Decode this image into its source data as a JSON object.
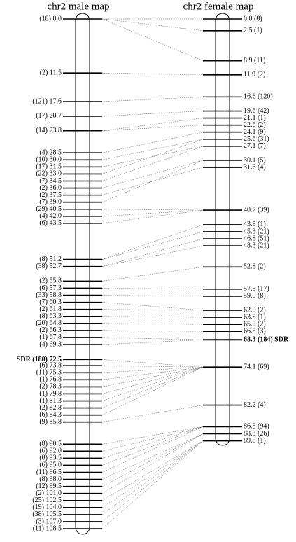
{
  "male": {
    "title": "chr2 male map",
    "markers": [
      {
        "label": "(18) 0.0"
      },
      {
        "label": "(2) 11.5"
      },
      {
        "label": "(121) 17.6"
      },
      {
        "label": "(17) 20.7"
      },
      {
        "label": "(14) 23.8"
      },
      {
        "label": "(4) 28.5"
      },
      {
        "label": "(10) 30.0"
      },
      {
        "label": "(17) 31.5"
      },
      {
        "label": "(22) 33.0"
      },
      {
        "label": "(7) 34.5"
      },
      {
        "label": "(2) 36.0"
      },
      {
        "label": "(2) 37.5"
      },
      {
        "label": "(7) 39.0"
      },
      {
        "label": "(29) 40.5"
      },
      {
        "label": "(4) 42.0"
      },
      {
        "label": "(6) 43.5"
      },
      {
        "label": "(8) 51.2"
      },
      {
        "label": "(38) 52.7"
      },
      {
        "label": "(2) 55.8"
      },
      {
        "label": "(6) 57.3"
      },
      {
        "label": "(33) 58.8"
      },
      {
        "label": "(7) 60.3"
      },
      {
        "label": "(2) 61.8"
      },
      {
        "label": "(8) 63.3"
      },
      {
        "label": "(20) 64.8"
      },
      {
        "label": "(2) 66.3"
      },
      {
        "label": "(1) 67.8"
      },
      {
        "label": "(4) 69.3"
      },
      {
        "label": "SDR (180) 72.5",
        "bold": true
      },
      {
        "label": "(6) 73.8"
      },
      {
        "label": "(11) 75.3"
      },
      {
        "label": "(1) 76.8"
      },
      {
        "label": "(2) 78.3"
      },
      {
        "label": "(1) 79.8"
      },
      {
        "label": "(1) 81.3"
      },
      {
        "label": "(2) 82.8"
      },
      {
        "label": "(6) 84.3"
      },
      {
        "label": "(9) 85.8"
      },
      {
        "label": "(8) 90.5"
      },
      {
        "label": "(6) 92.0"
      },
      {
        "label": "(8) 93.5"
      },
      {
        "label": "(6) 95.0"
      },
      {
        "label": "(11) 96.5"
      },
      {
        "label": "(8) 98.0"
      },
      {
        "label": "(12) 99.5"
      },
      {
        "label": "(2) 101.0"
      },
      {
        "label": "(25) 102.5"
      },
      {
        "label": "(19) 104.0"
      },
      {
        "label": "(38) 105.5"
      },
      {
        "label": "(3) 107.0"
      },
      {
        "label": "(11) 108.5"
      }
    ]
  },
  "female": {
    "title": "chr2 female map",
    "markers": [
      {
        "label": "0.0 (8)"
      },
      {
        "label": "2.5 (1)"
      },
      {
        "label": "8.9 (11)"
      },
      {
        "label": "11.9 (2)"
      },
      {
        "label": "16.6 (120)"
      },
      {
        "label": "19.6 (42)"
      },
      {
        "label": "21.1 (1)"
      },
      {
        "label": "22.6 (2)"
      },
      {
        "label": "24.1 (9)"
      },
      {
        "label": "25.6 (31)"
      },
      {
        "label": "27.1 (7)"
      },
      {
        "label": "30.1 (5)"
      },
      {
        "label": "31.6 (4)"
      },
      {
        "label": "40.7 (39)"
      },
      {
        "label": "43.8 (1)"
      },
      {
        "label": "45.3 (21)"
      },
      {
        "label": "46.8 (51)"
      },
      {
        "label": "48.3 (21)"
      },
      {
        "label": "52.8 (2)"
      },
      {
        "label": "57.5 (17)"
      },
      {
        "label": "59.0 (8)"
      },
      {
        "label": "62.0 (2)"
      },
      {
        "label": "63.5 (1)"
      },
      {
        "label": "65.0 (2)"
      },
      {
        "label": "66.5 (3)"
      },
      {
        "label": "68.3 (184) SDR",
        "bold": true
      },
      {
        "label": "74.1 (69)"
      },
      {
        "label": "82.2 (4)"
      },
      {
        "label": "86.8 (94)"
      },
      {
        "label": "88.3 (26)"
      },
      {
        "label": "89.8 (1)"
      }
    ]
  },
  "links": [
    [
      0,
      0
    ],
    [
      0,
      1
    ],
    [
      0,
      2
    ],
    [
      1,
      3
    ],
    [
      2,
      4
    ],
    [
      3,
      5
    ],
    [
      4,
      6
    ],
    [
      4,
      7
    ],
    [
      5,
      8
    ],
    [
      6,
      9
    ],
    [
      7,
      10
    ],
    [
      8,
      9
    ],
    [
      9,
      10
    ],
    [
      10,
      11
    ],
    [
      11,
      12
    ],
    [
      12,
      11
    ],
    [
      13,
      13
    ],
    [
      14,
      13
    ],
    [
      15,
      13
    ],
    [
      16,
      14
    ],
    [
      16,
      15
    ],
    [
      17,
      16
    ],
    [
      17,
      17
    ],
    [
      18,
      18
    ],
    [
      19,
      19
    ],
    [
      20,
      20
    ],
    [
      21,
      21
    ],
    [
      22,
      21
    ],
    [
      23,
      22
    ],
    [
      24,
      23
    ],
    [
      25,
      24
    ],
    [
      26,
      25
    ],
    [
      27,
      25
    ],
    [
      28,
      26
    ],
    [
      29,
      26
    ],
    [
      30,
      26
    ],
    [
      31,
      26
    ],
    [
      32,
      26
    ],
    [
      33,
      26
    ],
    [
      34,
      26
    ],
    [
      35,
      26
    ],
    [
      36,
      26
    ],
    [
      37,
      27
    ],
    [
      38,
      28
    ],
    [
      39,
      28
    ],
    [
      40,
      28
    ],
    [
      41,
      28
    ],
    [
      42,
      28
    ],
    [
      43,
      29
    ],
    [
      44,
      29
    ],
    [
      45,
      29
    ],
    [
      46,
      30
    ],
    [
      47,
      30
    ],
    [
      48,
      30
    ],
    [
      49,
      30
    ],
    [
      50,
      30
    ]
  ]
}
